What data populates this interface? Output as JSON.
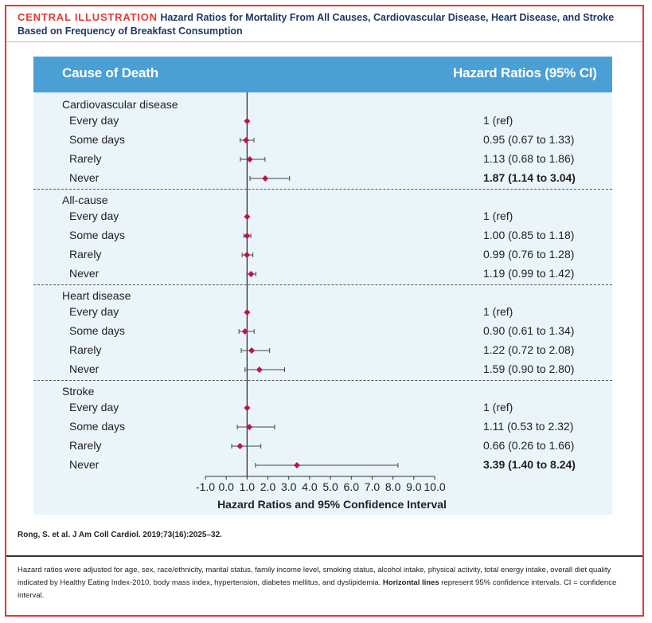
{
  "title": {
    "label": "CENTRAL ILLUSTRATION",
    "text": "Hazard Ratios for Mortality From All Causes, Cardiovascular Disease, Heart Disease, and Stroke Based on Frequency of Breakfast Consumption"
  },
  "header": {
    "left": "Cause of Death",
    "right": "Hazard Ratios (95% CI)"
  },
  "colors": {
    "accent": "#e53a2f",
    "header_bg": "#4a9fd5",
    "panel_bg": "#eaf4fb",
    "marker": "#c0143c",
    "title_text": "#1f3864"
  },
  "chart_data": {
    "type": "forest",
    "xlabel": "Hazard Ratios and 95% Confidence Interval",
    "xlim": [
      -1.0,
      10.0
    ],
    "xticks": [
      "-1.0",
      "0.0",
      "1.0",
      "2.0",
      "3.0",
      "4.0",
      "5.0",
      "6.0",
      "7.0",
      "8.0",
      "9.0",
      "10.0"
    ],
    "reference_line": 1.0,
    "groups": [
      {
        "name": "Cardiovascular disease",
        "rows": [
          {
            "label": "Every day",
            "hr": 1.0,
            "lo": 1.0,
            "hi": 1.0,
            "text": "1 (ref)",
            "bold": false
          },
          {
            "label": "Some days",
            "hr": 0.95,
            "lo": 0.67,
            "hi": 1.33,
            "text": "0.95 (0.67 to 1.33)",
            "bold": false
          },
          {
            "label": "Rarely",
            "hr": 1.13,
            "lo": 0.68,
            "hi": 1.86,
            "text": "1.13 (0.68 to 1.86)",
            "bold": false
          },
          {
            "label": "Never",
            "hr": 1.87,
            "lo": 1.14,
            "hi": 3.04,
            "text": "1.87 (1.14 to 3.04)",
            "bold": true
          }
        ]
      },
      {
        "name": "All-cause",
        "rows": [
          {
            "label": "Every day",
            "hr": 1.0,
            "lo": 1.0,
            "hi": 1.0,
            "text": "1 (ref)",
            "bold": false
          },
          {
            "label": "Some days",
            "hr": 1.0,
            "lo": 0.85,
            "hi": 1.18,
            "text": "1.00 (0.85 to 1.18)",
            "bold": false
          },
          {
            "label": "Rarely",
            "hr": 0.99,
            "lo": 0.76,
            "hi": 1.28,
            "text": "0.99 (0.76 to 1.28)",
            "bold": false
          },
          {
            "label": "Never",
            "hr": 1.19,
            "lo": 0.99,
            "hi": 1.42,
            "text": "1.19 (0.99 to 1.42)",
            "bold": false
          }
        ]
      },
      {
        "name": "Heart disease",
        "rows": [
          {
            "label": "Every day",
            "hr": 1.0,
            "lo": 1.0,
            "hi": 1.0,
            "text": "1 (ref)",
            "bold": false
          },
          {
            "label": "Some days",
            "hr": 0.9,
            "lo": 0.61,
            "hi": 1.34,
            "text": "0.90 (0.61 to 1.34)",
            "bold": false
          },
          {
            "label": "Rarely",
            "hr": 1.22,
            "lo": 0.72,
            "hi": 2.08,
            "text": "1.22 (0.72 to 2.08)",
            "bold": false
          },
          {
            "label": "Never",
            "hr": 1.59,
            "lo": 0.9,
            "hi": 2.8,
            "text": "1.59 (0.90 to 2.80)",
            "bold": false
          }
        ]
      },
      {
        "name": "Stroke",
        "rows": [
          {
            "label": "Every day",
            "hr": 1.0,
            "lo": 1.0,
            "hi": 1.0,
            "text": "1 (ref)",
            "bold": false
          },
          {
            "label": "Some days",
            "hr": 1.11,
            "lo": 0.53,
            "hi": 2.32,
            "text": "1.11 (0.53 to 2.32)",
            "bold": false
          },
          {
            "label": "Rarely",
            "hr": 0.66,
            "lo": 0.26,
            "hi": 1.66,
            "text": "0.66 (0.26 to 1.66)",
            "bold": false
          },
          {
            "label": "Never",
            "hr": 3.39,
            "lo": 1.4,
            "hi": 8.24,
            "text": "3.39 (1.40 to 8.24)",
            "bold": true
          }
        ]
      }
    ]
  },
  "source": "Rong, S. et al. J Am Coll Cardiol. 2019;73(16):2025–32.",
  "footnote": {
    "text_before": "Hazard ratios were adjusted for age, sex, race/ethnicity, marital status, family income level, smoking status, alcohol intake, physical activity, total energy intake, overall diet quality indicated by Healthy Eating Index-2010, body mass index, hypertension, diabetes mellitus, and dyslipidemia. ",
    "bold": "Horizontal lines",
    "text_after": " represent 95% confidence intervals. CI = confidence interval."
  }
}
